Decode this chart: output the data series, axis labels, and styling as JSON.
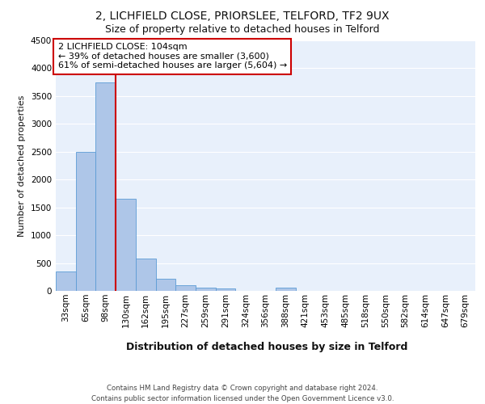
{
  "title1": "2, LICHFIELD CLOSE, PRIORSLEE, TELFORD, TF2 9UX",
  "title2": "Size of property relative to detached houses in Telford",
  "xlabel": "Distribution of detached houses by size in Telford",
  "ylabel": "Number of detached properties",
  "footer1": "Contains HM Land Registry data © Crown copyright and database right 2024.",
  "footer2": "Contains public sector information licensed under the Open Government Licence v3.0.",
  "categories": [
    "33sqm",
    "65sqm",
    "98sqm",
    "130sqm",
    "162sqm",
    "195sqm",
    "227sqm",
    "259sqm",
    "291sqm",
    "324sqm",
    "356sqm",
    "388sqm",
    "421sqm",
    "453sqm",
    "485sqm",
    "518sqm",
    "550sqm",
    "582sqm",
    "614sqm",
    "647sqm",
    "679sqm"
  ],
  "bar_values": [
    350,
    2500,
    3750,
    1650,
    580,
    220,
    100,
    60,
    50,
    0,
    0,
    60,
    0,
    0,
    0,
    0,
    0,
    0,
    0,
    0,
    0
  ],
  "bar_color": "#aec6e8",
  "bar_edge_color": "#5b9bd5",
  "red_line_x": 2.5,
  "annotation_text": "2 LICHFIELD CLOSE: 104sqm\n← 39% of detached houses are smaller (3,600)\n61% of semi-detached houses are larger (5,604) →",
  "annotation_box_color": "#ffffff",
  "annotation_box_edge": "#cc0000",
  "ylim": [
    0,
    4500
  ],
  "yticks": [
    0,
    500,
    1000,
    1500,
    2000,
    2500,
    3000,
    3500,
    4000,
    4500
  ],
  "bg_color": "#e8f0fb",
  "grid_color": "#ffffff",
  "title1_fontsize": 10,
  "title2_fontsize": 9,
  "xlabel_fontsize": 9,
  "ylabel_fontsize": 8,
  "tick_fontsize": 7.5,
  "annotation_fontsize": 8
}
